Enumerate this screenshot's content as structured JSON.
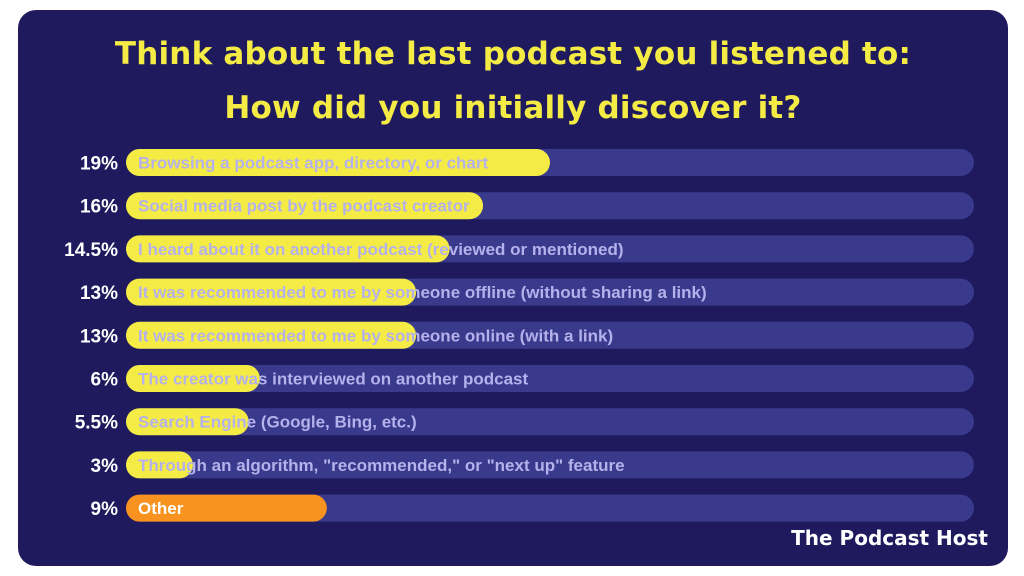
{
  "colors": {
    "panel": "#1f1a5e",
    "track": "#3a3a8c",
    "bar": "#f4ec45",
    "bar_highlight": "#f7931e",
    "title": "#f4ec45",
    "percent": "#ffffff",
    "label": "#b4b1ec"
  },
  "chart_data": {
    "type": "bar",
    "orientation": "horizontal",
    "title": "Think about the last podcast you listened to: How did you initially discover it?",
    "title_lines": [
      "Think about the last podcast you listened to:",
      "How did you initially discover it?"
    ],
    "categories": [
      "Browsing a podcast app, directory, or chart",
      "Social media post by the podcast creator",
      "I heard about it on another podcast (reviewed or mentioned)",
      "It was recommended to me by someone offline (without sharing a link)",
      "It was recommended to me by someone online (with a link)",
      "The creator was interviewed on another podcast",
      "Search Engine (Google, Bing, etc.)",
      "Through an algorithm, \"recommended,\" or \"next up\" feature",
      "Other"
    ],
    "values": [
      19,
      16,
      14.5,
      13,
      13,
      6,
      5.5,
      3,
      9
    ],
    "value_labels": [
      "19%",
      "16%",
      "14.5%",
      "13%",
      "13%",
      "6%",
      "5.5%",
      "3%",
      "9%"
    ],
    "highlight_index": 8,
    "xlim": [
      0,
      38
    ],
    "grid": false
  },
  "brand": "The Podcast Host"
}
